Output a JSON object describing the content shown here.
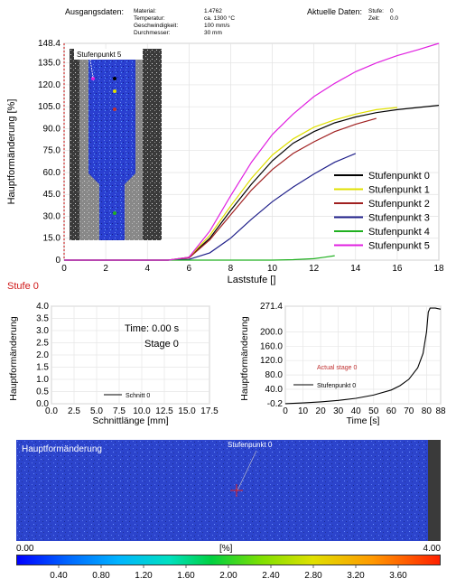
{
  "header": {
    "left_title": "Ausgangsdaten:",
    "rows": [
      {
        "label": "Material:",
        "value": "1.4762"
      },
      {
        "label": "Temperatur:",
        "value": "ca. 1300 °C"
      },
      {
        "label": "Geschwindigkeit:",
        "value": "100 mm/s"
      },
      {
        "label": "Durchmesser:",
        "value": "30 mm"
      }
    ],
    "right_title": "Aktuelle Daten:",
    "right_rows": [
      {
        "label": "Stufe:",
        "value": "0"
      },
      {
        "label": "Zeit:",
        "value": "0.0"
      }
    ]
  },
  "stage_label": "Stufe 0",
  "inset_label": "Stufenpunkt 5",
  "chart_data": [
    {
      "type": "line",
      "xlabel": "Laststufe []",
      "ylabel": "Hauptformänderung [%]",
      "xlim": [
        0,
        18
      ],
      "ylim": [
        0,
        148.4
      ],
      "x_ticks": [
        0,
        2,
        4,
        6,
        8,
        10,
        12,
        14,
        16,
        18
      ],
      "y_ticks": [
        "0",
        "15.0",
        "30.0",
        "45.0",
        "60.0",
        "75.0",
        "90.0",
        "105.0",
        "120.0",
        "135.0",
        "148.4"
      ],
      "legend_position": "bottom-right",
      "series": [
        {
          "name": "Stufenpunkt 0",
          "color": "#000000",
          "points": [
            [
              0,
              0
            ],
            [
              5,
              0
            ],
            [
              6,
              2
            ],
            [
              7,
              15
            ],
            [
              8,
              34
            ],
            [
              9,
              52
            ],
            [
              10,
              68
            ],
            [
              11,
              80
            ],
            [
              12,
              88
            ],
            [
              13,
              94
            ],
            [
              14,
              98
            ],
            [
              15,
              101
            ],
            [
              16,
              103
            ],
            [
              17,
              104.5
            ],
            [
              18,
              106
            ]
          ]
        },
        {
          "name": "Stufenpunkt 1",
          "color": "#e0e000",
          "points": [
            [
              0,
              0
            ],
            [
              5,
              0
            ],
            [
              6,
              2
            ],
            [
              7,
              17
            ],
            [
              8,
              37
            ],
            [
              9,
              56
            ],
            [
              10,
              72
            ],
            [
              11,
              83
            ],
            [
              12,
              91
            ],
            [
              13,
              96
            ],
            [
              14,
              100
            ],
            [
              15,
              103
            ],
            [
              16,
              104.5
            ]
          ]
        },
        {
          "name": "Stufenpunkt 2",
          "color": "#a02020",
          "points": [
            [
              0,
              0
            ],
            [
              5,
              0
            ],
            [
              6,
              1.5
            ],
            [
              7,
              14
            ],
            [
              8,
              31
            ],
            [
              9,
              48
            ],
            [
              10,
              62
            ],
            [
              11,
              73
            ],
            [
              12,
              81
            ],
            [
              13,
              88
            ],
            [
              14,
              93
            ],
            [
              15,
              97
            ]
          ]
        },
        {
          "name": "Stufenpunkt 3",
          "color": "#20208a",
          "points": [
            [
              0,
              0
            ],
            [
              5,
              0
            ],
            [
              6,
              0.5
            ],
            [
              7,
              5
            ],
            [
              8,
              15
            ],
            [
              9,
              28
            ],
            [
              10,
              40
            ],
            [
              11,
              50
            ],
            [
              12,
              59
            ],
            [
              13,
              67
            ],
            [
              14,
              73
            ]
          ]
        },
        {
          "name": "Stufenpunkt 4",
          "color": "#20b020",
          "points": [
            [
              0,
              0
            ],
            [
              10,
              0
            ],
            [
              11,
              0.3
            ],
            [
              12,
              1
            ],
            [
              12.5,
              2
            ],
            [
              13,
              3
            ]
          ]
        },
        {
          "name": "Stufenpunkt 5",
          "color": "#e020e0",
          "points": [
            [
              0,
              0
            ],
            [
              5,
              0
            ],
            [
              6,
              2
            ],
            [
              7,
              20
            ],
            [
              8,
              44
            ],
            [
              9,
              67
            ],
            [
              10,
              86
            ],
            [
              11,
              100
            ],
            [
              12,
              112
            ],
            [
              13,
              121
            ],
            [
              14,
              129
            ],
            [
              15,
              135
            ],
            [
              16,
              140
            ],
            [
              17,
              144
            ],
            [
              18,
              148.4
            ]
          ]
        }
      ]
    },
    {
      "type": "line",
      "xlabel": "Schnittlänge [mm]",
      "ylabel": "Hauptformänderung",
      "xlim": [
        0,
        17.5
      ],
      "ylim": [
        0,
        4.0
      ],
      "x_ticks": [
        "0.0",
        "2.5",
        "5.0",
        "7.5",
        "10.0",
        "12.5",
        "15.0",
        "17.5"
      ],
      "y_ticks": [
        "0.0",
        "0.5",
        "1.0",
        "1.5",
        "2.0",
        "2.5",
        "3.0",
        "3.5",
        "4.0"
      ],
      "annotations": [
        "Time: 0.00 s",
        "Stage 0"
      ],
      "series": [
        {
          "name": "Schnitt 0",
          "color": "#000000",
          "points": []
        }
      ]
    },
    {
      "type": "line",
      "xlabel": "Time [s]",
      "ylabel": "Hauptformänderung",
      "xlim": [
        0,
        88
      ],
      "ylim": [
        -0.2,
        271.4
      ],
      "x_ticks": [
        "0",
        "10",
        "20",
        "30",
        "40",
        "50",
        "60",
        "70",
        "80",
        "88"
      ],
      "y_ticks": [
        "-0.2",
        "40.0",
        "80.0",
        "120.0",
        "160.0",
        "200.0",
        "271.4"
      ],
      "annotations": [
        "Actual stage 0"
      ],
      "series": [
        {
          "name": "Stufenpunkt 0",
          "color": "#000000",
          "points": [
            [
              0,
              0
            ],
            [
              10,
              2
            ],
            [
              20,
              5
            ],
            [
              30,
              9
            ],
            [
              40,
              15
            ],
            [
              50,
              24
            ],
            [
              60,
              38
            ],
            [
              65,
              50
            ],
            [
              70,
              68
            ],
            [
              75,
              100
            ],
            [
              78,
              140
            ],
            [
              80,
              200
            ],
            [
              81,
              255
            ],
            [
              82,
              266
            ],
            [
              85,
              266
            ],
            [
              88,
              263
            ]
          ]
        }
      ]
    }
  ],
  "field_view": {
    "title": "Hauptformänderung",
    "point_label": "Stufenpunkt 0",
    "scale_min": "0.00",
    "scale_unit": "[%]",
    "scale_max": "4.00",
    "colorbar_labels": [
      "0.40",
      "0.80",
      "1.20",
      "1.60",
      "2.00",
      "2.40",
      "2.80",
      "3.20",
      "3.60"
    ]
  }
}
